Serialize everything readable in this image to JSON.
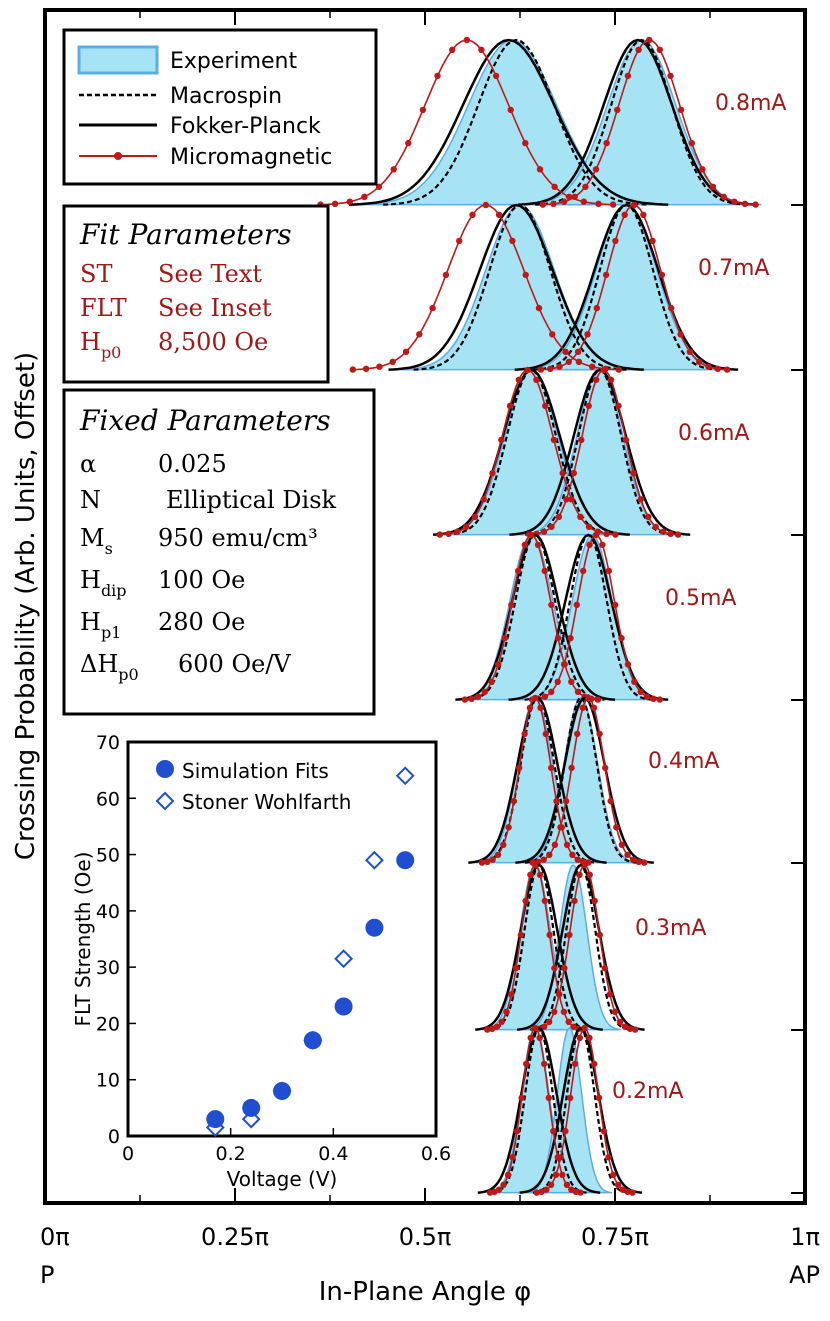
{
  "chart_data": [
    {
      "type": "line",
      "xlabel": "In-Plane Angle φ",
      "ylabel": "Crossing Probability (Arb. Units, Offset)",
      "xlim": [
        0,
        1
      ],
      "x_ticks": [
        "0π",
        "0.25π",
        "0.5π",
        "0.75π",
        "1π"
      ],
      "x_end_labels": [
        "P",
        "AP"
      ],
      "x_ticks_value": [
        0,
        0.25,
        0.5,
        0.75,
        1
      ],
      "legend": {
        "placement": "top-left",
        "entries": [
          "Experiment",
          "Macrospin",
          "Fokker-Planck",
          "Micromagnetic"
        ]
      },
      "colors": {
        "experiment_fill": "#a6e4f5",
        "experiment_line": "#5aaee8",
        "macrospin": "#000000",
        "fokker_planck": "#000000",
        "micromagnetic": "#c01818",
        "label": "#a01818"
      },
      "panels": [
        {
          "current": "0.8mA",
          "experiment": [
            {
              "center": 0.615,
              "width": 0.058
            },
            {
              "center": 0.785,
              "width": 0.045
            }
          ],
          "macrospin": [
            {
              "center": 0.62,
              "width": 0.05
            },
            {
              "center": 0.785,
              "width": 0.04
            }
          ],
          "fokker_planck": [
            {
              "center": 0.61,
              "width": 0.06
            },
            {
              "center": 0.78,
              "width": 0.045
            }
          ],
          "micromagnetic": [
            {
              "center": 0.555,
              "width": 0.055
            },
            {
              "center": 0.795,
              "width": 0.04
            }
          ]
        },
        {
          "current": "0.7mA",
          "experiment": [
            {
              "center": 0.625,
              "width": 0.045
            },
            {
              "center": 0.765,
              "width": 0.04
            }
          ],
          "macrospin": [
            {
              "center": 0.625,
              "width": 0.04
            },
            {
              "center": 0.765,
              "width": 0.035
            }
          ],
          "fokker_planck": [
            {
              "center": 0.62,
              "width": 0.048
            },
            {
              "center": 0.765,
              "width": 0.042
            }
          ],
          "micromagnetic": [
            {
              "center": 0.58,
              "width": 0.05
            },
            {
              "center": 0.775,
              "width": 0.035
            }
          ]
        },
        {
          "current": "0.6mA",
          "experiment": [
            {
              "center": 0.64,
              "width": 0.035
            },
            {
              "center": 0.73,
              "width": 0.03
            }
          ],
          "macrospin": [
            {
              "center": 0.64,
              "width": 0.032
            },
            {
              "center": 0.73,
              "width": 0.028
            }
          ],
          "fokker_planck": [
            {
              "center": 0.64,
              "width": 0.037
            },
            {
              "center": 0.73,
              "width": 0.034
            }
          ],
          "micromagnetic": [
            {
              "center": 0.635,
              "width": 0.033
            },
            {
              "center": 0.735,
              "width": 0.028
            }
          ]
        },
        {
          "current": "0.5mA",
          "experiment": [
            {
              "center": 0.64,
              "width": 0.028
            },
            {
              "center": 0.72,
              "width": 0.026
            }
          ],
          "macrospin": [
            {
              "center": 0.645,
              "width": 0.026
            },
            {
              "center": 0.715,
              "width": 0.024
            }
          ],
          "fokker_planck": [
            {
              "center": 0.645,
              "width": 0.03
            },
            {
              "center": 0.715,
              "width": 0.03
            }
          ],
          "micromagnetic": [
            {
              "center": 0.64,
              "width": 0.025
            },
            {
              "center": 0.725,
              "width": 0.024
            }
          ]
        },
        {
          "current": "0.4mA",
          "experiment": [
            {
              "center": 0.645,
              "width": 0.023
            },
            {
              "center": 0.705,
              "width": 0.022
            }
          ],
          "macrospin": [
            {
              "center": 0.648,
              "width": 0.022
            },
            {
              "center": 0.705,
              "width": 0.021
            }
          ],
          "fokker_planck": [
            {
              "center": 0.648,
              "width": 0.026
            },
            {
              "center": 0.71,
              "width": 0.026
            }
          ],
          "micromagnetic": [
            {
              "center": 0.645,
              "width": 0.02
            },
            {
              "center": 0.715,
              "width": 0.021
            }
          ]
        },
        {
          "current": "0.3mA",
          "experiment": [
            {
              "center": 0.645,
              "width": 0.02
            },
            {
              "center": 0.695,
              "width": 0.018
            }
          ],
          "macrospin": [
            {
              "center": 0.65,
              "width": 0.019
            },
            {
              "center": 0.705,
              "width": 0.019
            }
          ],
          "fokker_planck": [
            {
              "center": 0.65,
              "width": 0.024
            },
            {
              "center": 0.705,
              "width": 0.024
            }
          ],
          "micromagnetic": [
            {
              "center": 0.645,
              "width": 0.018
            },
            {
              "center": 0.71,
              "width": 0.019
            }
          ]
        },
        {
          "current": "0.2mA",
          "experiment": [
            {
              "center": 0.645,
              "width": 0.018
            },
            {
              "center": 0.69,
              "width": 0.016
            }
          ],
          "macrospin": [
            {
              "center": 0.65,
              "width": 0.018
            },
            {
              "center": 0.705,
              "width": 0.018
            }
          ],
          "fokker_planck": [
            {
              "center": 0.65,
              "width": 0.023
            },
            {
              "center": 0.705,
              "width": 0.023
            }
          ],
          "micromagnetic": [
            {
              "center": 0.645,
              "width": 0.017
            },
            {
              "center": 0.71,
              "width": 0.018
            }
          ]
        }
      ]
    },
    {
      "type": "scatter",
      "xlabel": "Voltage (V)",
      "ylabel": "FLT Strength (Oe)",
      "xlim": [
        0,
        0.6
      ],
      "ylim": [
        0,
        70
      ],
      "x_ticks": [
        "0",
        "0.2",
        "0.4",
        "0.6"
      ],
      "y_ticks": [
        "0",
        "10",
        "20",
        "30",
        "40",
        "50",
        "60",
        "70"
      ],
      "legend": {
        "placement": "top",
        "entries": [
          "Simulation Fits",
          "Stoner Wohlfarth"
        ]
      },
      "colors": {
        "marker": "#1f4fd0"
      },
      "series": [
        {
          "name": "Simulation Fits",
          "marker": "filled-circle",
          "x": [
            0.17,
            0.24,
            0.3,
            0.36,
            0.42,
            0.48,
            0.54
          ],
          "y": [
            3,
            5,
            8,
            17,
            23,
            37,
            49
          ]
        },
        {
          "name": "Stoner Wohlfarth",
          "marker": "open-diamond",
          "x": [
            0.17,
            0.24,
            0.3,
            0.36,
            0.42,
            0.48,
            0.54
          ],
          "y": [
            1.5,
            3,
            8,
            17,
            31.5,
            49,
            64
          ]
        }
      ]
    }
  ],
  "fit_parameters": {
    "title": "Fit Parameters",
    "rows": [
      {
        "name": "ST",
        "sub": "",
        "value": "See Text"
      },
      {
        "name": "FLT",
        "sub": "",
        "value": "See Inset"
      },
      {
        "name": "H",
        "sub": "p0",
        "value": "8,500 Oe"
      }
    ]
  },
  "fixed_parameters": {
    "title": "Fixed Parameters",
    "rows": [
      {
        "name": "α",
        "sub": "",
        "value": "0.025"
      },
      {
        "name": "N",
        "sub": "",
        "value": "Elliptical Disk"
      },
      {
        "name": "M",
        "sub": "s",
        "value": "950 emu/cm³"
      },
      {
        "name": "H",
        "sub": "dip",
        "value": "100 Oe"
      },
      {
        "name": "H",
        "sub": "p1",
        "value": "280 Oe"
      },
      {
        "name": "ΔH",
        "sub": "p0",
        "value": "600 Oe/V"
      }
    ]
  }
}
